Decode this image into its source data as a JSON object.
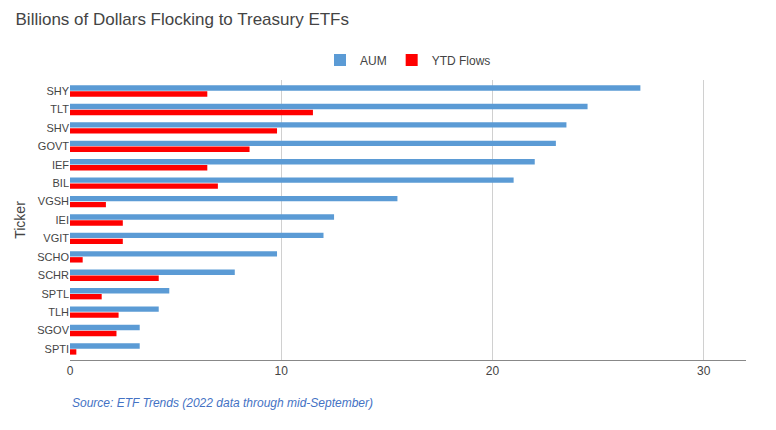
{
  "chart_data": {
    "type": "bar",
    "orientation": "horizontal",
    "title": "Billions of Dollars Flocking to Treasury ETFs",
    "ylabel": "Ticker",
    "annotations": [
      "Source: ETF Trends (2022 data through mid-September)"
    ],
    "categories": [
      "SPTI",
      "SGOV",
      "TLH",
      "SPTL",
      "SCHR",
      "SCHO",
      "VGIT",
      "IEI",
      "VGSH",
      "BIL",
      "IEF",
      "GOVT",
      "SHV",
      "TLT",
      "SHY"
    ],
    "series": [
      {
        "name": "AUM",
        "color": "#5B9BD5",
        "values": [
          3.3,
          3.3,
          4.2,
          4.7,
          7.8,
          9.8,
          12.0,
          12.5,
          15.5,
          21.0,
          22.0,
          23.0,
          23.5,
          24.5,
          27.0
        ]
      },
      {
        "name": "YTD Flows",
        "color": "#FF0000",
        "values": [
          0.3,
          2.2,
          2.3,
          1.5,
          4.2,
          0.6,
          2.5,
          2.5,
          1.7,
          7.0,
          6.5,
          8.5,
          9.8,
          11.5,
          6.5
        ]
      }
    ],
    "xlim": [
      0,
      32
    ],
    "xticks": [
      0,
      10,
      20,
      30
    ],
    "grid": "x",
    "legend": "top"
  }
}
